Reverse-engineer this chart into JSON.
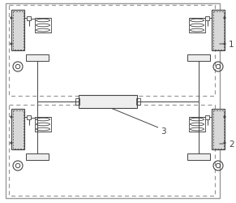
{
  "fig_width": 2.91,
  "fig_height": 2.51,
  "dpi": 100,
  "bg_color": "#ffffff",
  "line_color": "#444444",
  "dash_color": "#888888",
  "gray_fill": "#d8d8d8",
  "light_fill": "#eeeeee",
  "label1": "1",
  "label2": "2",
  "label3": "3"
}
